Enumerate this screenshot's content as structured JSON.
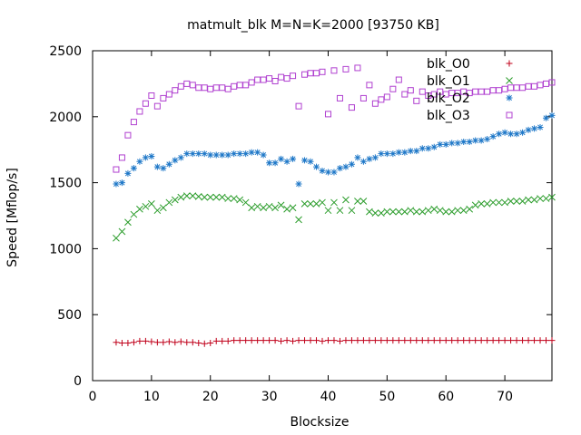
{
  "chart_data": {
    "type": "scatter",
    "title": "matmult_blk M=N=K=2000 [93750 KB]",
    "xlabel": "Blocksize",
    "ylabel": "Speed [Mflop/s]",
    "xlim": [
      0,
      78
    ],
    "ylim": [
      0,
      2500
    ],
    "xticks": [
      0,
      10,
      20,
      30,
      40,
      50,
      60,
      70
    ],
    "yticks": [
      0,
      500,
      1000,
      1500,
      2000,
      2500
    ],
    "grid": false,
    "legend": "top-right",
    "x": [
      4,
      5,
      6,
      7,
      8,
      9,
      10,
      11,
      12,
      13,
      14,
      15,
      16,
      17,
      18,
      19,
      20,
      21,
      22,
      23,
      24,
      25,
      26,
      27,
      28,
      29,
      30,
      31,
      32,
      33,
      34,
      35,
      36,
      37,
      38,
      39,
      40,
      41,
      42,
      43,
      44,
      45,
      46,
      47,
      48,
      49,
      50,
      51,
      52,
      53,
      54,
      55,
      56,
      57,
      58,
      59,
      60,
      61,
      62,
      63,
      64,
      65,
      66,
      67,
      68,
      69,
      70,
      71,
      72,
      73,
      74,
      75,
      76,
      77,
      78
    ],
    "series": [
      {
        "name": "blk_O0",
        "marker": "plus",
        "color": "#c0001a",
        "values": [
          290,
          285,
          285,
          290,
          300,
          300,
          295,
          290,
          290,
          295,
          290,
          295,
          290,
          290,
          285,
          280,
          285,
          300,
          300,
          300,
          305,
          305,
          305,
          305,
          305,
          305,
          305,
          305,
          300,
          305,
          300,
          305,
          305,
          305,
          305,
          300,
          305,
          305,
          300,
          305,
          305,
          305,
          305,
          305,
          305,
          305,
          305,
          305,
          305,
          305,
          305,
          305,
          305,
          305,
          305,
          305,
          305,
          305,
          305,
          305,
          305,
          305,
          305,
          305,
          305,
          305,
          305,
          305,
          305,
          305,
          305,
          305,
          305,
          305,
          305
        ]
      },
      {
        "name": "blk_O1",
        "marker": "cross",
        "color": "#2a9c2a",
        "values": [
          1080,
          1130,
          1200,
          1260,
          1300,
          1320,
          1340,
          1290,
          1310,
          1350,
          1370,
          1390,
          1400,
          1400,
          1395,
          1390,
          1390,
          1390,
          1390,
          1380,
          1380,
          1370,
          1350,
          1310,
          1320,
          1310,
          1320,
          1310,
          1330,
          1300,
          1310,
          1220,
          1340,
          1340,
          1340,
          1350,
          1290,
          1350,
          1290,
          1370,
          1290,
          1360,
          1360,
          1280,
          1270,
          1270,
          1280,
          1280,
          1280,
          1280,
          1290,
          1280,
          1280,
          1290,
          1300,
          1290,
          1280,
          1280,
          1290,
          1290,
          1300,
          1330,
          1340,
          1340,
          1350,
          1350,
          1350,
          1360,
          1360,
          1360,
          1370,
          1370,
          1380,
          1380,
          1390
        ]
      },
      {
        "name": "blk_O2",
        "marker": "star",
        "color": "#1f78c8",
        "values": [
          1490,
          1500,
          1570,
          1610,
          1660,
          1690,
          1700,
          1620,
          1610,
          1640,
          1670,
          1690,
          1720,
          1720,
          1720,
          1720,
          1710,
          1710,
          1710,
          1710,
          1720,
          1720,
          1720,
          1730,
          1730,
          1710,
          1650,
          1650,
          1680,
          1660,
          1680,
          1490,
          1670,
          1660,
          1620,
          1590,
          1580,
          1580,
          1610,
          1620,
          1640,
          1690,
          1660,
          1680,
          1690,
          1720,
          1720,
          1720,
          1730,
          1730,
          1740,
          1740,
          1760,
          1760,
          1770,
          1790,
          1790,
          1800,
          1800,
          1810,
          1810,
          1820,
          1820,
          1830,
          1850,
          1870,
          1880,
          1870,
          1870,
          1880,
          1900,
          1910,
          1920,
          1990,
          2010
        ]
      },
      {
        "name": "blk_O3",
        "marker": "square",
        "color": "#b040d0",
        "values": [
          1600,
          1690,
          1860,
          1960,
          2040,
          2100,
          2160,
          2080,
          2140,
          2170,
          2200,
          2230,
          2250,
          2240,
          2220,
          2220,
          2210,
          2220,
          2220,
          2210,
          2230,
          2240,
          2240,
          2260,
          2280,
          2280,
          2290,
          2270,
          2300,
          2290,
          2310,
          2080,
          2320,
          2330,
          2330,
          2340,
          2020,
          2350,
          2140,
          2360,
          2070,
          2370,
          2140,
          2240,
          2100,
          2130,
          2150,
          2210,
          2280,
          2170,
          2200,
          2120,
          2190,
          2160,
          2170,
          2190,
          2170,
          2180,
          2180,
          2190,
          2180,
          2190,
          2190,
          2190,
          2200,
          2200,
          2210,
          2220,
          2220,
          2220,
          2230,
          2230,
          2240,
          2250,
          2260
        ]
      }
    ]
  }
}
